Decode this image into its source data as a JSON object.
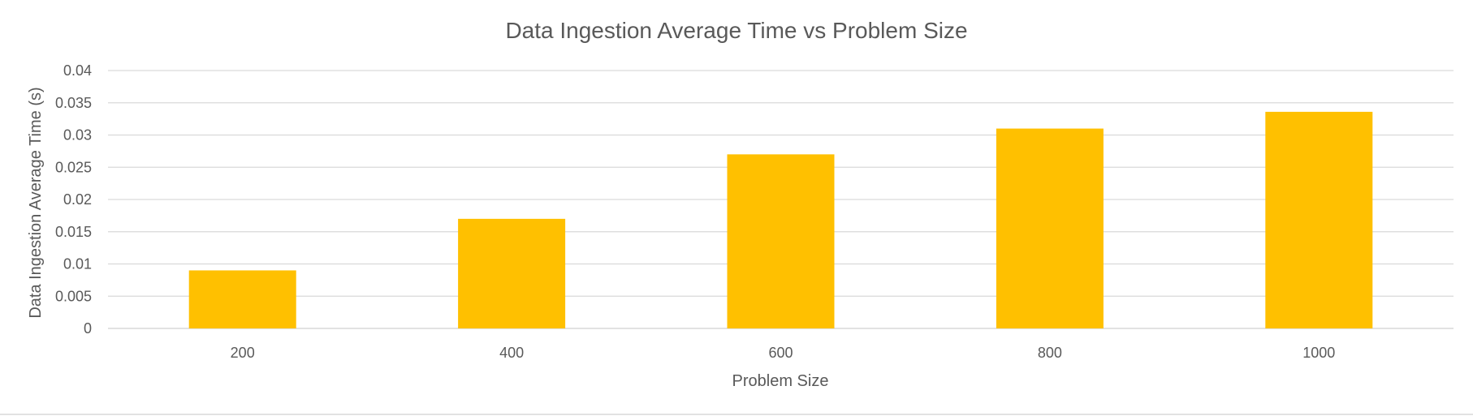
{
  "chart_data": {
    "type": "bar",
    "title": "Data Ingestion Average Time vs Problem Size",
    "xlabel": "Problem Size",
    "ylabel": "Data Ingestion Average Time (s)",
    "categories": [
      "200",
      "400",
      "600",
      "800",
      "1000"
    ],
    "values": [
      0.009,
      0.017,
      0.027,
      0.031,
      0.0336
    ],
    "ylim": [
      0,
      0.04
    ],
    "yticks": [
      "0",
      "0.005",
      "0.01",
      "0.015",
      "0.02",
      "0.025",
      "0.03",
      "0.035",
      "0.04"
    ],
    "grid": true,
    "legend": "none",
    "bar_color": "#FFC000"
  }
}
